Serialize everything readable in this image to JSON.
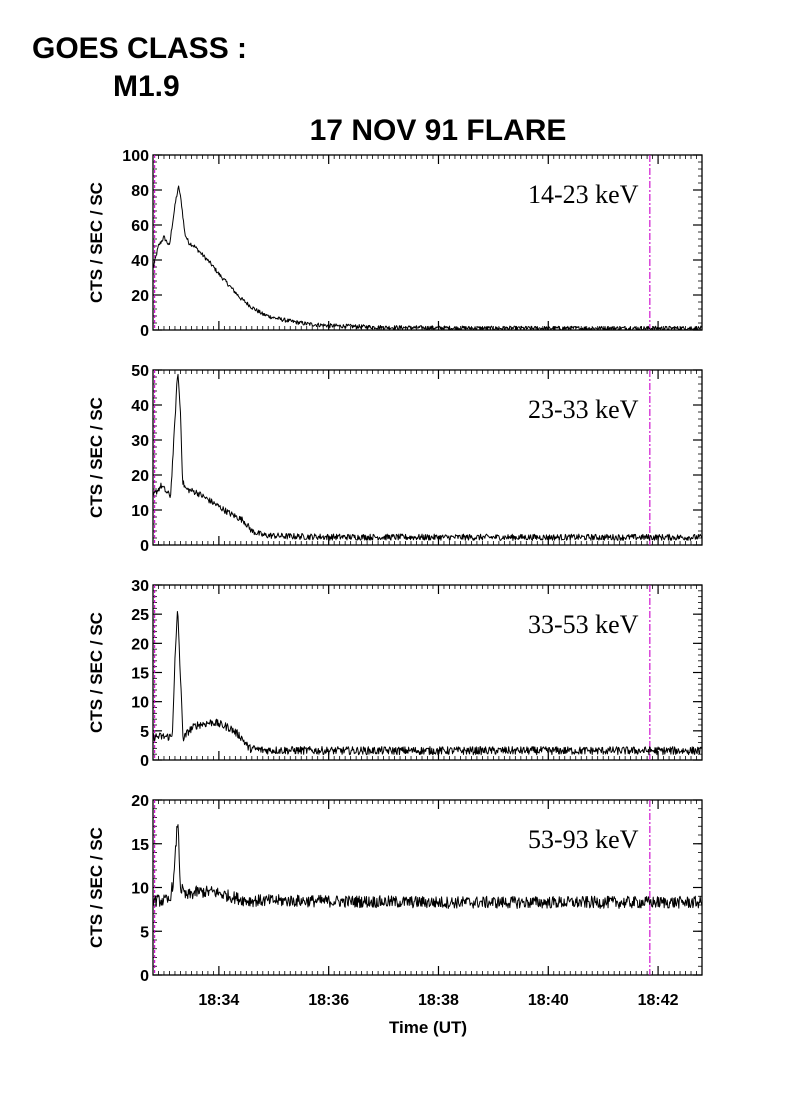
{
  "goes": {
    "label": "GOES CLASS :",
    "value": "M1.9"
  },
  "chart_data": {
    "type": "line",
    "title": "17 NOV 91 FLARE",
    "xlabel": "Time (UT)",
    "x_unit": "minutes of hour 18 (UT)",
    "xlim": [
      32.8,
      42.8
    ],
    "xticks": [
      34,
      36,
      38,
      40,
      42
    ],
    "xtick_labels": [
      "18:34",
      "18:36",
      "18:38",
      "18:40",
      "18:42"
    ],
    "vertical_markers": [
      {
        "x": 32.83,
        "color": "#cc00cc",
        "style": "dashed"
      },
      {
        "x": 41.85,
        "color": "#cc00cc",
        "style": "dash-dot"
      }
    ],
    "grid": false,
    "panels": [
      {
        "series_label": "14-23 keV",
        "ylabel": "CTS / SEC / SC",
        "ylim": [
          0,
          100
        ],
        "yticks": [
          0,
          20,
          40,
          60,
          80,
          100
        ],
        "keyframes": [
          [
            32.8,
            35
          ],
          [
            32.9,
            48
          ],
          [
            33.0,
            53
          ],
          [
            33.1,
            48
          ],
          [
            33.15,
            60
          ],
          [
            33.22,
            75
          ],
          [
            33.27,
            82
          ],
          [
            33.32,
            72
          ],
          [
            33.38,
            55
          ],
          [
            33.45,
            50
          ],
          [
            33.55,
            48
          ],
          [
            33.7,
            43
          ],
          [
            33.85,
            38
          ],
          [
            34.0,
            32
          ],
          [
            34.2,
            25
          ],
          [
            34.4,
            18
          ],
          [
            34.6,
            13
          ],
          [
            34.8,
            9
          ],
          [
            35.0,
            7
          ],
          [
            35.3,
            5
          ],
          [
            35.6,
            3.5
          ],
          [
            36.0,
            2.5
          ],
          [
            36.5,
            2
          ],
          [
            37.0,
            1.5
          ],
          [
            38.0,
            1.2
          ],
          [
            39.0,
            1
          ],
          [
            40.0,
            1
          ],
          [
            41.0,
            1
          ],
          [
            42.8,
            1
          ]
        ],
        "noise": 1.2
      },
      {
        "series_label": "23-33 keV",
        "ylabel": "CTS / SEC / SC",
        "ylim": [
          0,
          50
        ],
        "yticks": [
          0,
          10,
          20,
          30,
          40,
          50
        ],
        "keyframes": [
          [
            32.8,
            14
          ],
          [
            32.95,
            17
          ],
          [
            33.05,
            15
          ],
          [
            33.12,
            14
          ],
          [
            33.18,
            30
          ],
          [
            33.25,
            50
          ],
          [
            33.3,
            38
          ],
          [
            33.34,
            18
          ],
          [
            33.4,
            16
          ],
          [
            33.6,
            15
          ],
          [
            33.8,
            13
          ],
          [
            34.0,
            11
          ],
          [
            34.2,
            9
          ],
          [
            34.45,
            7
          ],
          [
            34.6,
            4
          ],
          [
            34.8,
            2.8
          ],
          [
            35.2,
            2.5
          ],
          [
            36.0,
            2.3
          ],
          [
            38.0,
            2.2
          ],
          [
            42.8,
            2.2
          ]
        ],
        "noise": 0.9
      },
      {
        "series_label": "33-53 keV",
        "ylabel": "CTS / SEC / SC",
        "ylim": [
          0,
          30
        ],
        "yticks": [
          0,
          5,
          10,
          15,
          20,
          25,
          30
        ],
        "keyframes": [
          [
            32.8,
            4
          ],
          [
            33.0,
            4
          ],
          [
            33.15,
            4
          ],
          [
            33.2,
            17
          ],
          [
            33.25,
            26
          ],
          [
            33.3,
            14
          ],
          [
            33.35,
            3.5
          ],
          [
            33.45,
            5
          ],
          [
            33.6,
            6
          ],
          [
            33.9,
            6.5
          ],
          [
            34.2,
            5.5
          ],
          [
            34.4,
            4
          ],
          [
            34.55,
            2
          ],
          [
            34.8,
            1.7
          ],
          [
            36.0,
            1.6
          ],
          [
            38.0,
            1.6
          ],
          [
            42.8,
            1.6
          ]
        ],
        "noise": 0.7
      },
      {
        "series_label": "53-93 keV",
        "ylabel": "CTS / SEC / SC",
        "ylim": [
          0,
          20
        ],
        "yticks": [
          0,
          5,
          10,
          15,
          20
        ],
        "keyframes": [
          [
            32.8,
            8.5
          ],
          [
            33.1,
            8.5
          ],
          [
            33.18,
            11
          ],
          [
            33.25,
            18
          ],
          [
            33.3,
            10
          ],
          [
            33.4,
            9
          ],
          [
            33.6,
            9.5
          ],
          [
            33.9,
            9.5
          ],
          [
            34.2,
            9
          ],
          [
            34.5,
            8.5
          ],
          [
            35.0,
            8.5
          ],
          [
            38.0,
            8.3
          ],
          [
            42.8,
            8.3
          ]
        ],
        "noise": 0.7
      }
    ]
  }
}
